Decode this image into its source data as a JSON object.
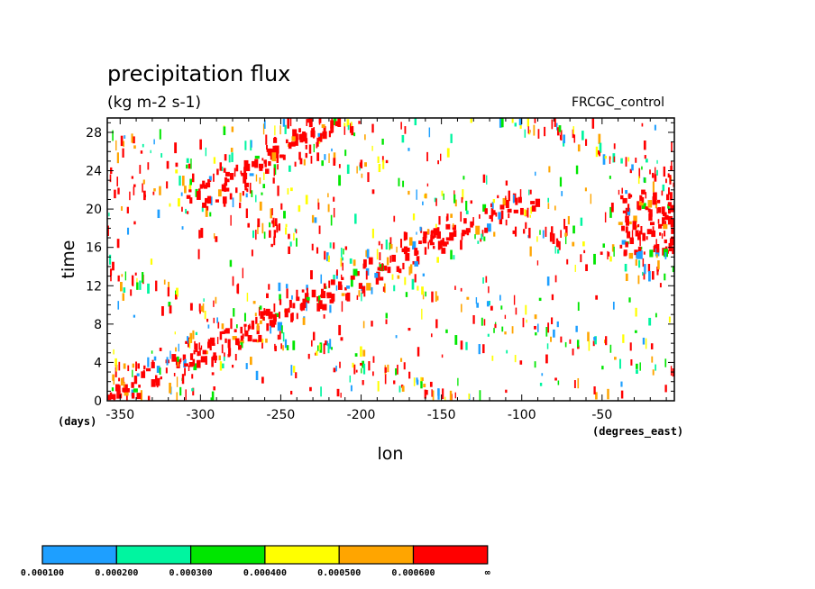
{
  "chart_data": {
    "type": "heatmap",
    "title": "precipitation flux",
    "units": "(kg m-2 s-1)",
    "source": "FRCGC_control",
    "xlabel": "lon",
    "ylabel": "time",
    "x_units": "(degrees_east)",
    "y_units": "(days)",
    "xlim": [
      -358,
      -5
    ],
    "ylim": [
      0,
      29.5
    ],
    "x_ticks": [
      -350,
      -300,
      -250,
      -200,
      -150,
      -100,
      -50
    ],
    "x_tick_labels": [
      "-350",
      "-300",
      "-250",
      "-200",
      "-150",
      "-100",
      "-50"
    ],
    "y_ticks": [
      0,
      4,
      8,
      12,
      16,
      20,
      24,
      28
    ],
    "y_tick_labels": [
      "0",
      "4",
      "8",
      "12",
      "16",
      "20",
      "24",
      "28"
    ],
    "grid": false,
    "colorbar": {
      "levels": [
        "0.000100",
        "0.000200",
        "0.000300",
        "0.000400",
        "0.000500",
        "0.000600",
        "∞"
      ],
      "colors": [
        "#1e9fff",
        "#00f5a0",
        "#00e600",
        "#ffff00",
        "#ffa500",
        "#ff0000"
      ]
    },
    "features": [
      {
        "kind": "eastward-propagating band",
        "from": [
          -355,
          0.5
        ],
        "to": [
          -105,
          20.5
        ]
      },
      {
        "kind": "band",
        "from": [
          -300,
          21
        ],
        "to": [
          -225,
          29
        ]
      },
      {
        "kind": "cluster",
        "x_range": [
          -40,
          -5
        ],
        "y_range": [
          15,
          22
        ]
      }
    ]
  }
}
